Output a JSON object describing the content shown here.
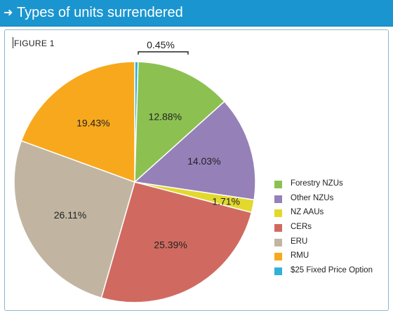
{
  "header": {
    "arrow_icon": "arrow-right-icon",
    "title": "Types of units surrendered",
    "color": "#1a95cf"
  },
  "figure_label": "FIGURE 1",
  "chart_data": {
    "type": "pie",
    "title": "",
    "slices": [
      {
        "label": "Forestry NZUs",
        "value": 12.88,
        "display": "12.88%",
        "color": "#8cc152"
      },
      {
        "label": "Other NZUs",
        "value": 14.03,
        "display": "14.03%",
        "color": "#9680b8"
      },
      {
        "label": "NZ AAUs",
        "value": 1.71,
        "display": "1.71%",
        "color": "#e2d82e"
      },
      {
        "label": "CERs",
        "value": 25.39,
        "display": "25.39%",
        "color": "#d06a60"
      },
      {
        "label": "ERU",
        "value": 26.11,
        "display": "26.11%",
        "color": "#c1b5a2"
      },
      {
        "label": "RMU",
        "value": 19.43,
        "display": "19.43%",
        "color": "#f8a81c"
      },
      {
        "label": "$25 Fixed Price Option",
        "value": 0.45,
        "display": "0.45%",
        "color": "#2fb1da"
      }
    ],
    "legend_position": "right"
  }
}
